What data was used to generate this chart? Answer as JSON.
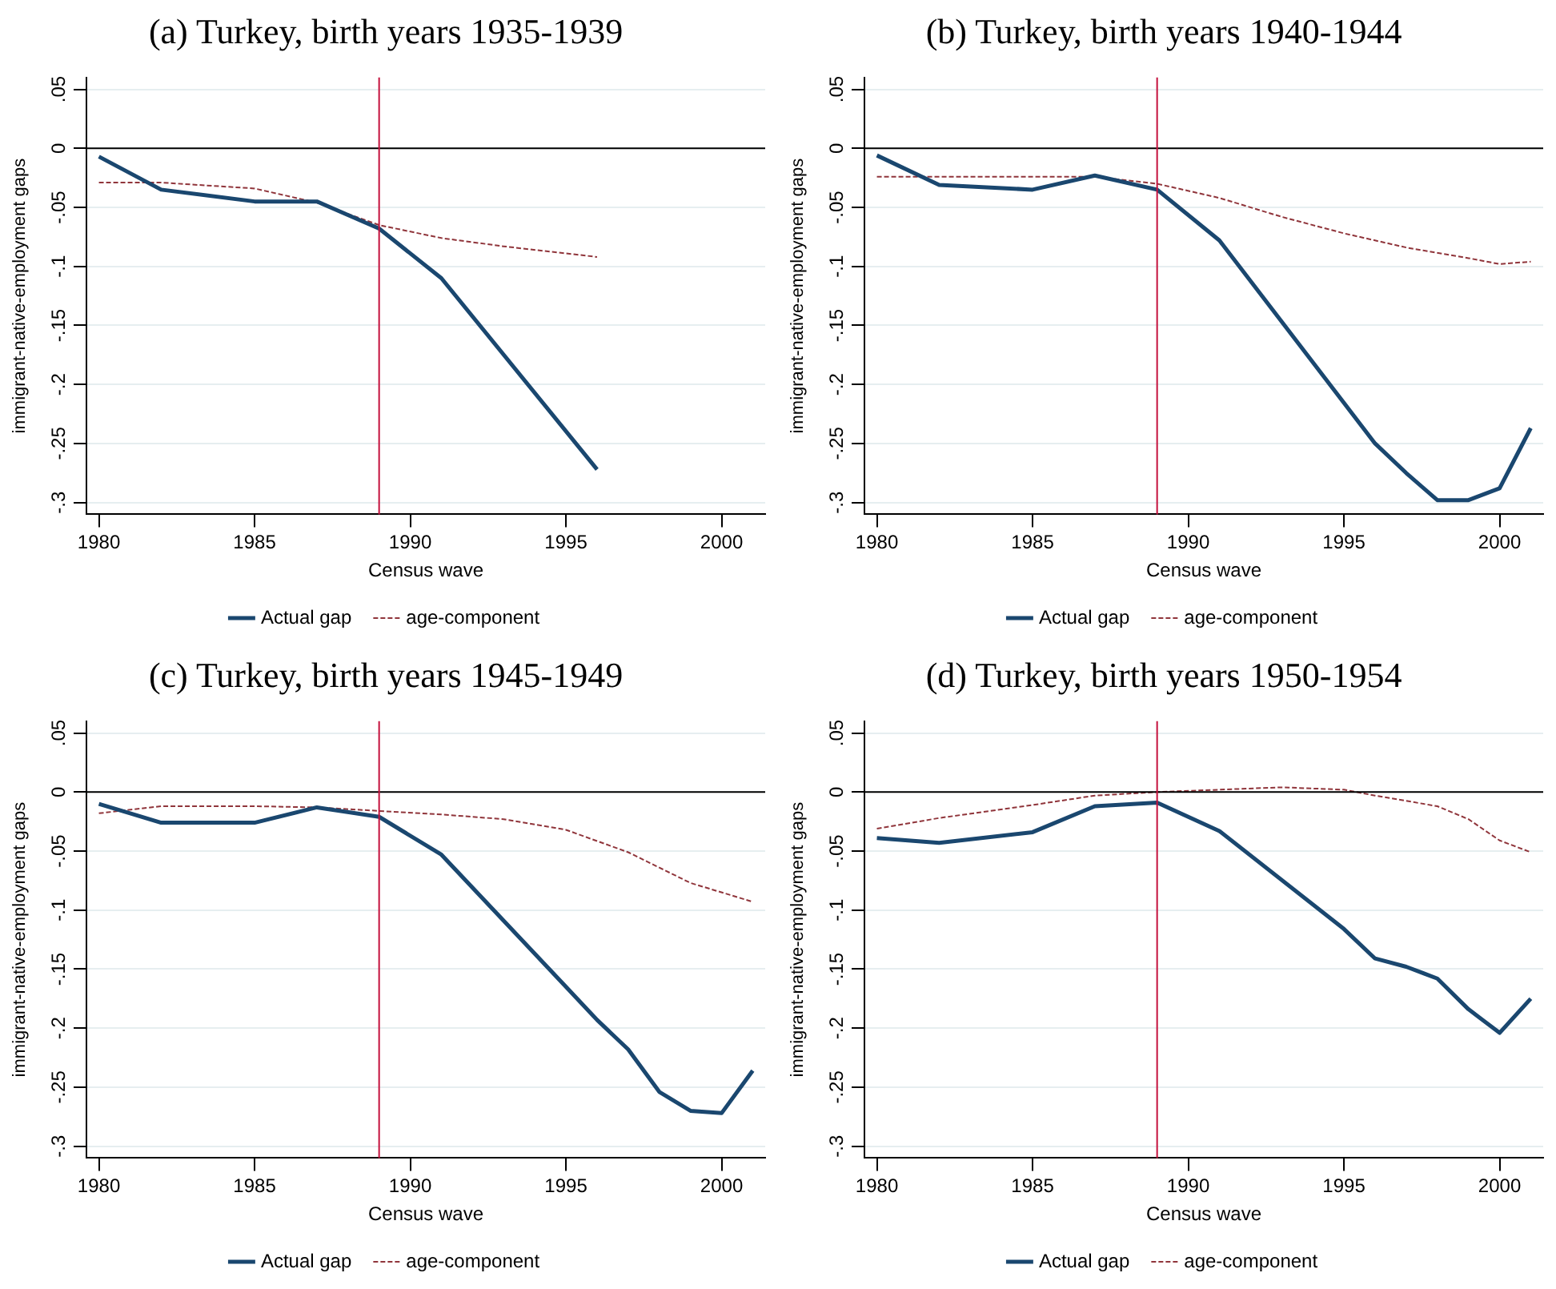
{
  "chart_data": [
    {
      "type": "line",
      "title": "(a) Turkey, birth years 1935-1939",
      "xlabel": "Census wave",
      "ylabel": "immigrant-native-employment gaps",
      "xlim": [
        1979.6,
        2001.4
      ],
      "xticks": [
        1980,
        1985,
        1990,
        1995,
        2000
      ],
      "ylim": [
        -0.31,
        0.06
      ],
      "yticks": [
        {
          "value": 0.05,
          "label": ".05"
        },
        {
          "value": 0,
          "label": "0"
        },
        {
          "value": -0.05,
          "label": "-.05"
        },
        {
          "value": -0.1,
          "label": "-.1"
        },
        {
          "value": -0.15,
          "label": "-.15"
        },
        {
          "value": -0.2,
          "label": "-.2"
        },
        {
          "value": -0.25,
          "label": "-.25"
        },
        {
          "value": -0.3,
          "label": "-.3"
        }
      ],
      "grid": "y",
      "legend": "bottom",
      "marker": "none",
      "ref_lines": [
        {
          "axis": "y",
          "value": 0,
          "color": "#000000"
        },
        {
          "axis": "x",
          "value": 1989,
          "color": "#c4103c"
        }
      ],
      "series": [
        {
          "name": "Actual gap",
          "color": "#1a476f",
          "line_style": "solid",
          "x": [
            1980,
            1982,
            1985,
            1987,
            1989,
            1991,
            1996
          ],
          "values": [
            -0.007,
            -0.035,
            -0.045,
            -0.045,
            -0.068,
            -0.11,
            -0.272
          ]
        },
        {
          "name": "age-component",
          "color": "#90353b",
          "line_style": "dashed",
          "x": [
            1980,
            1982,
            1985,
            1987,
            1989,
            1991,
            1993,
            1996
          ],
          "values": [
            -0.029,
            -0.029,
            -0.034,
            -0.046,
            -0.065,
            -0.076,
            -0.083,
            -0.092
          ]
        }
      ]
    },
    {
      "type": "line",
      "title": "(b) Turkey, birth years 1940-1944",
      "xlabel": "Census wave",
      "ylabel": "immigrant-native-employment gaps",
      "xlim": [
        1979.6,
        2001.4
      ],
      "xticks": [
        1980,
        1985,
        1990,
        1995,
        2000
      ],
      "ylim": [
        -0.31,
        0.06
      ],
      "yticks": [
        {
          "value": 0.05,
          "label": ".05"
        },
        {
          "value": 0,
          "label": "0"
        },
        {
          "value": -0.05,
          "label": "-.05"
        },
        {
          "value": -0.1,
          "label": "-.1"
        },
        {
          "value": -0.15,
          "label": "-.15"
        },
        {
          "value": -0.2,
          "label": "-.2"
        },
        {
          "value": -0.25,
          "label": "-.25"
        },
        {
          "value": -0.3,
          "label": "-.3"
        }
      ],
      "grid": "y",
      "legend": "bottom",
      "marker": "none",
      "ref_lines": [
        {
          "axis": "y",
          "value": 0,
          "color": "#000000"
        },
        {
          "axis": "x",
          "value": 1989,
          "color": "#c4103c"
        }
      ],
      "series": [
        {
          "name": "Actual gap",
          "color": "#1a476f",
          "line_style": "solid",
          "x": [
            1980,
            1982,
            1985,
            1987,
            1989,
            1991,
            1996,
            1997,
            1998,
            1999,
            2000,
            2001
          ],
          "values": [
            -0.006,
            -0.031,
            -0.035,
            -0.023,
            -0.035,
            -0.078,
            -0.25,
            -0.275,
            -0.298,
            -0.298,
            -0.288,
            -0.237
          ]
        },
        {
          "name": "age-component",
          "color": "#90353b",
          "line_style": "dashed",
          "x": [
            1980,
            1987,
            1989,
            1991,
            1993,
            1995,
            1997,
            1999,
            2000,
            2001
          ],
          "values": [
            -0.024,
            -0.024,
            -0.03,
            -0.042,
            -0.058,
            -0.072,
            -0.084,
            -0.093,
            -0.098,
            -0.096
          ]
        }
      ]
    },
    {
      "type": "line",
      "title": "(c) Turkey, birth years 1945-1949",
      "xlabel": "Census wave",
      "ylabel": "immigrant-native-employment gaps",
      "xlim": [
        1979.6,
        2001.4
      ],
      "xticks": [
        1980,
        1985,
        1990,
        1995,
        2000
      ],
      "ylim": [
        -0.31,
        0.06
      ],
      "yticks": [
        {
          "value": 0.05,
          "label": ".05"
        },
        {
          "value": 0,
          "label": "0"
        },
        {
          "value": -0.05,
          "label": "-.05"
        },
        {
          "value": -0.1,
          "label": "-.1"
        },
        {
          "value": -0.15,
          "label": "-.15"
        },
        {
          "value": -0.2,
          "label": "-.2"
        },
        {
          "value": -0.25,
          "label": "-.25"
        },
        {
          "value": -0.3,
          "label": "-.3"
        }
      ],
      "grid": "y",
      "legend": "bottom",
      "marker": "none",
      "ref_lines": [
        {
          "axis": "y",
          "value": 0,
          "color": "#000000"
        },
        {
          "axis": "x",
          "value": 1989,
          "color": "#c4103c"
        }
      ],
      "series": [
        {
          "name": "Actual gap",
          "color": "#1a476f",
          "line_style": "solid",
          "x": [
            1980,
            1982,
            1985,
            1987,
            1989,
            1991,
            1995,
            1996,
            1997,
            1998,
            1999,
            2000,
            2001
          ],
          "values": [
            -0.01,
            -0.026,
            -0.026,
            -0.013,
            -0.021,
            -0.053,
            -0.165,
            -0.193,
            -0.218,
            -0.254,
            -0.27,
            -0.272,
            -0.236
          ]
        },
        {
          "name": "age-component",
          "color": "#90353b",
          "line_style": "dashed",
          "x": [
            1980,
            1982,
            1985,
            1987,
            1989,
            1991,
            1993,
            1995,
            1997,
            1999,
            2001
          ],
          "values": [
            -0.018,
            -0.012,
            -0.012,
            -0.013,
            -0.016,
            -0.019,
            -0.023,
            -0.032,
            -0.051,
            -0.077,
            -0.093
          ]
        }
      ]
    },
    {
      "type": "line",
      "title": "(d) Turkey, birth years 1950-1954",
      "xlabel": "Census wave",
      "ylabel": "immigrant-native-employment gaps",
      "xlim": [
        1979.6,
        2001.4
      ],
      "xticks": [
        1980,
        1985,
        1990,
        1995,
        2000
      ],
      "ylim": [
        -0.31,
        0.06
      ],
      "yticks": [
        {
          "value": 0.05,
          "label": ".05"
        },
        {
          "value": 0,
          "label": "0"
        },
        {
          "value": -0.05,
          "label": "-.05"
        },
        {
          "value": -0.1,
          "label": "-.1"
        },
        {
          "value": -0.15,
          "label": "-.15"
        },
        {
          "value": -0.2,
          "label": "-.2"
        },
        {
          "value": -0.25,
          "label": "-.25"
        },
        {
          "value": -0.3,
          "label": "-.3"
        }
      ],
      "grid": "y",
      "legend": "bottom",
      "marker": "none",
      "ref_lines": [
        {
          "axis": "y",
          "value": 0,
          "color": "#000000"
        },
        {
          "axis": "x",
          "value": 1989,
          "color": "#c4103c"
        }
      ],
      "series": [
        {
          "name": "Actual gap",
          "color": "#1a476f",
          "line_style": "solid",
          "x": [
            1980,
            1982,
            1985,
            1987,
            1989,
            1991,
            1995,
            1996,
            1997,
            1998,
            1999,
            2000,
            2001
          ],
          "values": [
            -0.039,
            -0.043,
            -0.034,
            -0.012,
            -0.009,
            -0.033,
            -0.116,
            -0.141,
            -0.148,
            -0.158,
            -0.184,
            -0.204,
            -0.175
          ]
        },
        {
          "name": "age-component",
          "color": "#90353b",
          "line_style": "dashed",
          "x": [
            1980,
            1982,
            1985,
            1987,
            1989,
            1991,
            1993,
            1995,
            1996,
            1998,
            1999,
            2000,
            2001
          ],
          "values": [
            -0.031,
            -0.022,
            -0.011,
            -0.003,
            0,
            0.002,
            0.004,
            0.002,
            -0.003,
            -0.012,
            -0.023,
            -0.041,
            -0.051
          ]
        }
      ]
    }
  ]
}
